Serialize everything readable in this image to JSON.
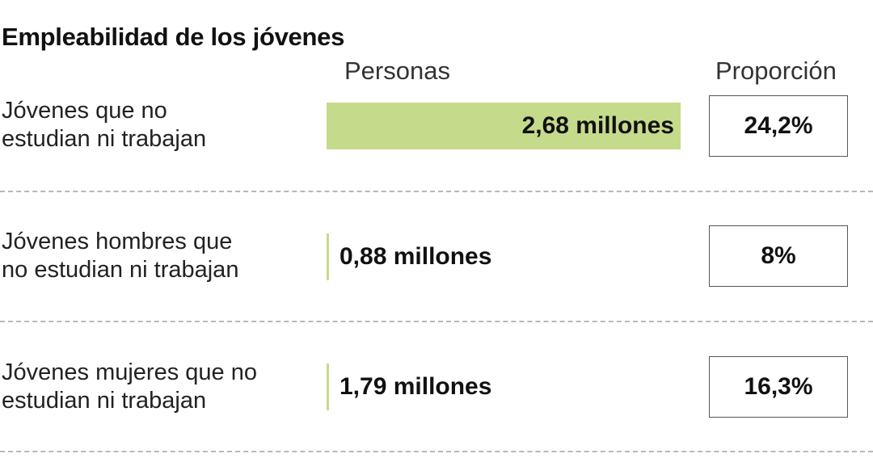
{
  "title": "Empleabilidad de los jóvenes",
  "columns": {
    "personas": "Personas",
    "proporcion": "Proporción"
  },
  "colors": {
    "bar": "#c6da8b",
    "box_border": "#555555",
    "divider": "#b8b8b8"
  },
  "rows": [
    {
      "label_line1": "Jóvenes que no",
      "label_line2": "estudian ni trabajan",
      "value_text": "2,68 millones",
      "proportion": "24,2%"
    },
    {
      "label_line1": "Jóvenes hombres que",
      "label_line2": "no estudian ni trabajan",
      "value_text": "0,88 millones",
      "proportion": "8%"
    },
    {
      "label_line1": "Jóvenes mujeres que no",
      "label_line2": "estudian ni trabajan",
      "value_text": "1,79 millones",
      "proportion": "16,3%"
    }
  ],
  "chart_data": {
    "type": "bar",
    "orientation": "horizontal",
    "categories": [
      "Jóvenes que no estudian ni trabajan",
      "Jóvenes hombres que no estudian ni trabajan",
      "Jóvenes mujeres que no estudian ni trabajan"
    ],
    "values": [
      2.68,
      0.88,
      1.79
    ],
    "unit": "millones",
    "proportions": [
      24.2,
      8,
      16.3
    ],
    "title": "Empleabilidad de los jóvenes",
    "xlabel": "Personas",
    "ylabel": ""
  }
}
